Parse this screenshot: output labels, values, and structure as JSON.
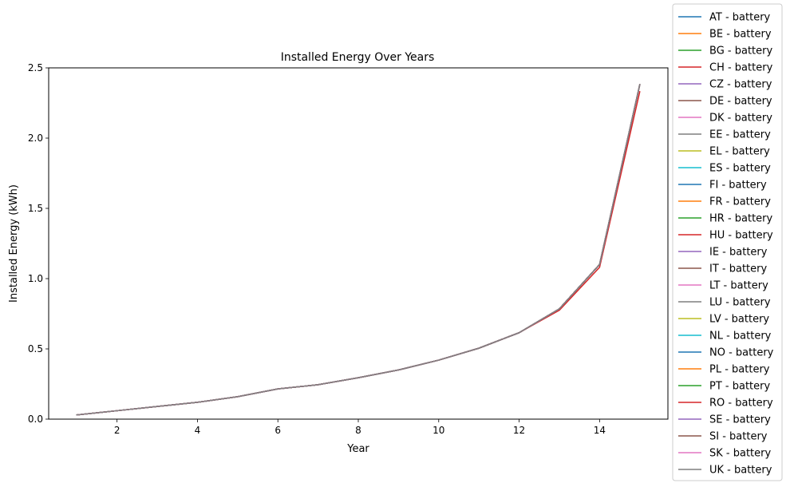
{
  "chart_data": {
    "type": "line",
    "title": "Installed Energy Over Years",
    "xlabel": "Year",
    "ylabel": "Installed Energy (kWh)",
    "xlim": [
      0.3,
      15.7
    ],
    "ylim": [
      0,
      2.5
    ],
    "xticks": [
      2,
      4,
      6,
      8,
      10,
      12,
      14
    ],
    "yticks": [
      0.0,
      0.5,
      1.0,
      1.5,
      2.0,
      2.5
    ],
    "ytick_labels": [
      "0.0",
      "0.5",
      "1.0",
      "1.5",
      "2.0",
      "2.5"
    ],
    "grid": false,
    "legend_position": "outside-right",
    "x": [
      1,
      2,
      3,
      4,
      5,
      6,
      7,
      8,
      9,
      10,
      11,
      12,
      13,
      14,
      15
    ],
    "base_values": [
      0.03,
      0.06,
      0.09,
      0.12,
      0.16,
      0.215,
      0.245,
      0.295,
      0.35,
      0.42,
      0.505,
      0.615,
      0.785,
      1.1,
      2.38
    ],
    "series": [
      {
        "name": "AT - battery",
        "color": "#1f77b4",
        "values": [
          0.03,
          0.06,
          0.09,
          0.12,
          0.16,
          0.215,
          0.245,
          0.295,
          0.35,
          0.42,
          0.505,
          0.615,
          0.785,
          1.1,
          2.38
        ]
      },
      {
        "name": "BE - battery",
        "color": "#ff7f0e",
        "values": [
          0.03,
          0.06,
          0.09,
          0.12,
          0.16,
          0.215,
          0.245,
          0.295,
          0.35,
          0.42,
          0.505,
          0.615,
          0.785,
          1.1,
          2.38
        ]
      },
      {
        "name": "BG - battery",
        "color": "#2ca02c",
        "values": [
          0.03,
          0.06,
          0.09,
          0.12,
          0.16,
          0.215,
          0.245,
          0.295,
          0.35,
          0.42,
          0.505,
          0.615,
          0.785,
          1.1,
          2.38
        ]
      },
      {
        "name": "CH - battery",
        "color": "#d62728",
        "values": [
          0.03,
          0.06,
          0.09,
          0.12,
          0.16,
          0.215,
          0.245,
          0.295,
          0.35,
          0.42,
          0.505,
          0.615,
          0.785,
          1.1,
          2.38
        ]
      },
      {
        "name": "CZ - battery",
        "color": "#9467bd",
        "values": [
          0.03,
          0.06,
          0.09,
          0.12,
          0.16,
          0.215,
          0.245,
          0.295,
          0.35,
          0.42,
          0.505,
          0.615,
          0.785,
          1.1,
          2.38
        ]
      },
      {
        "name": "DE - battery",
        "color": "#8c564b",
        "values": [
          0.03,
          0.06,
          0.09,
          0.12,
          0.16,
          0.215,
          0.245,
          0.295,
          0.35,
          0.42,
          0.505,
          0.615,
          0.785,
          1.1,
          2.38
        ]
      },
      {
        "name": "DK - battery",
        "color": "#e377c2",
        "values": [
          0.03,
          0.06,
          0.09,
          0.12,
          0.16,
          0.215,
          0.245,
          0.295,
          0.35,
          0.42,
          0.505,
          0.615,
          0.785,
          1.1,
          2.38
        ]
      },
      {
        "name": "EE - battery",
        "color": "#7f7f7f",
        "values": [
          0.03,
          0.06,
          0.09,
          0.12,
          0.16,
          0.215,
          0.245,
          0.295,
          0.35,
          0.42,
          0.505,
          0.615,
          0.785,
          1.1,
          2.38
        ]
      },
      {
        "name": "EL - battery",
        "color": "#bcbd22",
        "values": [
          0.03,
          0.06,
          0.09,
          0.12,
          0.16,
          0.215,
          0.245,
          0.295,
          0.35,
          0.42,
          0.505,
          0.615,
          0.785,
          1.1,
          2.38
        ]
      },
      {
        "name": "ES - battery",
        "color": "#17becf",
        "values": [
          0.03,
          0.06,
          0.09,
          0.12,
          0.16,
          0.215,
          0.245,
          0.295,
          0.35,
          0.42,
          0.505,
          0.615,
          0.785,
          1.1,
          2.38
        ]
      },
      {
        "name": "FI - battery",
        "color": "#1f77b4",
        "values": [
          0.03,
          0.06,
          0.09,
          0.12,
          0.16,
          0.215,
          0.245,
          0.295,
          0.35,
          0.42,
          0.505,
          0.615,
          0.785,
          1.1,
          2.38
        ]
      },
      {
        "name": "FR - battery",
        "color": "#ff7f0e",
        "values": [
          0.03,
          0.06,
          0.09,
          0.12,
          0.16,
          0.215,
          0.245,
          0.295,
          0.35,
          0.42,
          0.505,
          0.615,
          0.785,
          1.1,
          2.38
        ]
      },
      {
        "name": "HR - battery",
        "color": "#2ca02c",
        "values": [
          0.03,
          0.06,
          0.09,
          0.12,
          0.16,
          0.215,
          0.245,
          0.295,
          0.35,
          0.42,
          0.505,
          0.615,
          0.785,
          1.1,
          2.38
        ]
      },
      {
        "name": "HU - battery",
        "color": "#d62728",
        "values": [
          0.03,
          0.06,
          0.09,
          0.12,
          0.16,
          0.215,
          0.245,
          0.295,
          0.35,
          0.42,
          0.505,
          0.615,
          0.785,
          1.1,
          2.38
        ]
      },
      {
        "name": "IE - battery",
        "color": "#9467bd",
        "values": [
          0.03,
          0.06,
          0.09,
          0.12,
          0.16,
          0.215,
          0.245,
          0.295,
          0.35,
          0.42,
          0.505,
          0.615,
          0.785,
          1.1,
          2.38
        ]
      },
      {
        "name": "IT - battery",
        "color": "#8c564b",
        "values": [
          0.03,
          0.06,
          0.09,
          0.12,
          0.16,
          0.215,
          0.245,
          0.295,
          0.35,
          0.42,
          0.505,
          0.615,
          0.785,
          1.1,
          2.38
        ]
      },
      {
        "name": "LT - battery",
        "color": "#e377c2",
        "values": [
          0.03,
          0.06,
          0.09,
          0.12,
          0.16,
          0.215,
          0.245,
          0.295,
          0.35,
          0.42,
          0.505,
          0.615,
          0.785,
          1.1,
          2.38
        ]
      },
      {
        "name": "LU - battery",
        "color": "#7f7f7f",
        "values": [
          0.03,
          0.06,
          0.09,
          0.12,
          0.16,
          0.215,
          0.245,
          0.295,
          0.35,
          0.42,
          0.505,
          0.615,
          0.785,
          1.1,
          2.38
        ]
      },
      {
        "name": "LV - battery",
        "color": "#bcbd22",
        "values": [
          0.03,
          0.06,
          0.09,
          0.12,
          0.16,
          0.215,
          0.245,
          0.295,
          0.35,
          0.42,
          0.505,
          0.615,
          0.785,
          1.1,
          2.38
        ]
      },
      {
        "name": "NL - battery",
        "color": "#17becf",
        "values": [
          0.03,
          0.06,
          0.09,
          0.12,
          0.16,
          0.215,
          0.245,
          0.295,
          0.35,
          0.42,
          0.505,
          0.615,
          0.785,
          1.1,
          2.38
        ]
      },
      {
        "name": "NO - battery",
        "color": "#1f77b4",
        "values": [
          0.03,
          0.06,
          0.09,
          0.12,
          0.16,
          0.215,
          0.245,
          0.295,
          0.35,
          0.42,
          0.505,
          0.615,
          0.785,
          1.1,
          2.38
        ]
      },
      {
        "name": "PL - battery",
        "color": "#ff7f0e",
        "values": [
          0.03,
          0.06,
          0.09,
          0.12,
          0.16,
          0.215,
          0.245,
          0.295,
          0.35,
          0.42,
          0.505,
          0.615,
          0.785,
          1.1,
          2.38
        ]
      },
      {
        "name": "PT - battery",
        "color": "#2ca02c",
        "values": [
          0.03,
          0.06,
          0.09,
          0.12,
          0.16,
          0.215,
          0.245,
          0.295,
          0.35,
          0.42,
          0.505,
          0.615,
          0.785,
          1.1,
          2.38
        ]
      },
      {
        "name": "RO - battery",
        "color": "#d62728",
        "values": [
          0.03,
          0.06,
          0.09,
          0.12,
          0.16,
          0.215,
          0.245,
          0.295,
          0.35,
          0.42,
          0.505,
          0.615,
          0.775,
          1.08,
          2.33
        ]
      },
      {
        "name": "SE - battery",
        "color": "#9467bd",
        "values": [
          0.03,
          0.06,
          0.09,
          0.12,
          0.16,
          0.215,
          0.245,
          0.295,
          0.35,
          0.42,
          0.505,
          0.615,
          0.785,
          1.1,
          2.38
        ]
      },
      {
        "name": "SI - battery",
        "color": "#8c564b",
        "values": [
          0.03,
          0.06,
          0.09,
          0.12,
          0.16,
          0.215,
          0.245,
          0.295,
          0.35,
          0.42,
          0.505,
          0.615,
          0.785,
          1.1,
          2.38
        ]
      },
      {
        "name": "SK - battery",
        "color": "#e377c2",
        "values": [
          0.03,
          0.06,
          0.09,
          0.12,
          0.16,
          0.215,
          0.245,
          0.295,
          0.35,
          0.42,
          0.505,
          0.615,
          0.785,
          1.1,
          2.38
        ]
      },
      {
        "name": "UK - battery",
        "color": "#7f7f7f",
        "values": [
          0.03,
          0.06,
          0.09,
          0.12,
          0.16,
          0.215,
          0.245,
          0.295,
          0.35,
          0.42,
          0.505,
          0.615,
          0.785,
          1.1,
          2.38
        ]
      }
    ]
  }
}
